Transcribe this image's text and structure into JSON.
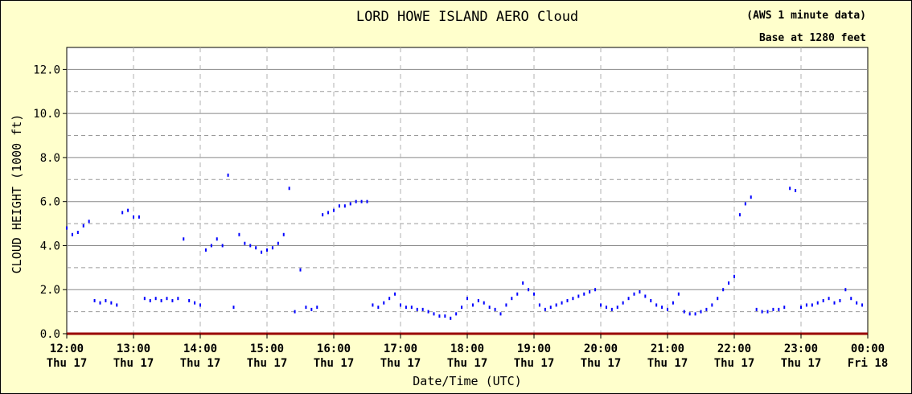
{
  "chart_data": {
    "type": "scatter",
    "title": "LORD HOWE ISLAND AERO Cloud",
    "note_line1": "(AWS 1 minute data)",
    "note_line2": "Base at 1280 feet",
    "xlabel": "Date/Time (UTC)",
    "ylabel": "CLOUD HEIGHT (1000 ft)",
    "ylim": [
      0,
      13
    ],
    "xlim": [
      "2024-01-17T12:00",
      "2024-01-18T00:00"
    ],
    "y_ticks": [
      "0.0",
      "2.0",
      "4.0",
      "6.0",
      "8.0",
      "10.0",
      "12.0"
    ],
    "x_ticks": [
      {
        "time": "12:00",
        "day": "Thu 17"
      },
      {
        "time": "13:00",
        "day": "Thu 17"
      },
      {
        "time": "14:00",
        "day": "Thu 17"
      },
      {
        "time": "15:00",
        "day": "Thu 17"
      },
      {
        "time": "16:00",
        "day": "Thu 17"
      },
      {
        "time": "17:00",
        "day": "Thu 17"
      },
      {
        "time": "18:00",
        "day": "Thu 17"
      },
      {
        "time": "19:00",
        "day": "Thu 17"
      },
      {
        "time": "20:00",
        "day": "Thu 17"
      },
      {
        "time": "21:00",
        "day": "Thu 17"
      },
      {
        "time": "22:00",
        "day": "Thu 17"
      },
      {
        "time": "23:00",
        "day": "Thu 17"
      },
      {
        "time": "00:00",
        "day": "Fri 18"
      }
    ],
    "grid": true,
    "colors": {
      "background": "#ffffcc",
      "plot": "#ffffff",
      "series": "#0000ff",
      "axis": "#000000",
      "baseline": "#990000"
    },
    "series": [
      {
        "x": [
          "12:00",
          "12:05",
          "12:10",
          "12:15",
          "12:20",
          "12:25",
          "12:30",
          "12:35",
          "12:40",
          "12:45",
          "12:50",
          "12:55",
          "13:00",
          "13:05",
          "13:10",
          "13:15",
          "13:20",
          "13:25",
          "13:30",
          "13:35",
          "13:40",
          "13:45",
          "13:50",
          "13:55",
          "14:00",
          "14:05",
          "14:10",
          "14:15",
          "14:20",
          "14:25",
          "14:30",
          "14:35",
          "14:40",
          "14:45",
          "14:50",
          "14:55",
          "15:00",
          "15:05",
          "15:10",
          "15:15",
          "15:20",
          "15:25",
          "15:30",
          "15:35",
          "15:40",
          "15:45",
          "15:50",
          "15:55",
          "16:00",
          "16:05",
          "16:10",
          "16:15",
          "16:20",
          "16:25",
          "16:30",
          "16:35",
          "16:40",
          "16:45",
          "16:50",
          "16:55",
          "17:00",
          "17:05",
          "17:10",
          "17:15",
          "17:20",
          "17:25",
          "17:30",
          "17:35",
          "17:40",
          "17:45",
          "17:50",
          "17:55",
          "18:00",
          "18:05",
          "18:10",
          "18:15",
          "18:20",
          "18:25",
          "18:30",
          "18:35",
          "18:40",
          "18:45",
          "18:50",
          "18:55",
          "19:00",
          "19:05",
          "19:10",
          "19:15",
          "19:20",
          "19:25",
          "19:30",
          "19:35",
          "19:40",
          "19:45",
          "19:50",
          "19:55",
          "20:00",
          "20:05",
          "20:10",
          "20:15",
          "20:20",
          "20:25",
          "20:30",
          "20:35",
          "20:40",
          "20:45",
          "20:50",
          "20:55",
          "21:00",
          "21:05",
          "21:10",
          "21:15",
          "21:20",
          "21:25",
          "21:30",
          "21:35",
          "21:40",
          "21:45",
          "21:50",
          "21:55",
          "22:00",
          "22:05",
          "22:10",
          "22:15",
          "22:20",
          "22:25",
          "22:30",
          "22:35",
          "22:40",
          "22:45",
          "22:50",
          "22:55",
          "23:00",
          "23:05",
          "23:10",
          "23:15",
          "23:20",
          "23:25",
          "23:30",
          "23:35",
          "23:40",
          "23:45",
          "23:50",
          "23:55"
        ],
        "y": [
          4.8,
          4.5,
          4.6,
          4.9,
          5.1,
          1.5,
          1.4,
          1.5,
          1.4,
          1.3,
          5.5,
          5.6,
          5.3,
          5.3,
          1.6,
          1.5,
          1.6,
          1.5,
          1.6,
          1.5,
          1.6,
          4.3,
          1.5,
          1.4,
          1.3,
          3.8,
          4.0,
          4.3,
          4.0,
          7.2,
          1.2,
          4.5,
          4.1,
          4.0,
          3.9,
          3.7,
          3.8,
          3.9,
          4.1,
          4.5,
          6.6,
          1.0,
          2.9,
          1.2,
          1.1,
          1.2,
          5.4,
          5.5,
          5.6,
          5.8,
          5.8,
          5.9,
          6.0,
          6.0,
          6.0,
          1.3,
          1.2,
          1.4,
          1.6,
          1.8,
          1.3,
          1.2,
          1.2,
          1.1,
          1.1,
          1.0,
          0.9,
          0.8,
          0.8,
          0.7,
          0.9,
          1.2,
          1.6,
          1.3,
          1.5,
          1.4,
          1.2,
          1.1,
          0.9,
          1.3,
          1.6,
          1.8,
          2.3,
          2.0,
          1.8,
          1.3,
          1.1,
          1.2,
          1.3,
          1.4,
          1.5,
          1.6,
          1.7,
          1.8,
          1.9,
          2.0,
          1.3,
          1.2,
          1.1,
          1.2,
          1.4,
          1.6,
          1.8,
          1.9,
          1.7,
          1.5,
          1.3,
          1.2,
          1.1,
          1.4,
          1.8,
          1.0,
          0.9,
          0.9,
          1.0,
          1.1,
          1.3,
          1.6,
          2.0,
          2.3,
          2.6,
          5.4,
          5.9,
          6.2,
          1.1,
          1.0,
          1.0,
          1.1,
          1.1,
          1.2,
          6.6,
          6.5,
          1.2,
          1.3,
          1.3,
          1.4,
          1.5,
          1.6,
          1.4,
          1.5,
          2.0,
          1.6,
          1.4,
          1.3
        ]
      }
    ]
  }
}
